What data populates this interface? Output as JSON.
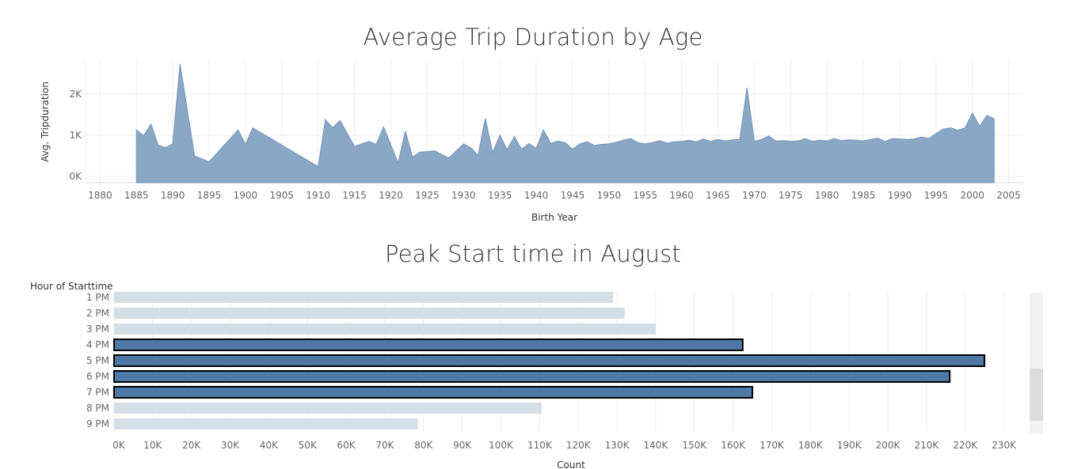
{
  "charts": {
    "area": {
      "title": "Average Trip Duration by Age"
    },
    "bar": {
      "title": "Peak Start time in August"
    }
  },
  "chart_data": [
    {
      "type": "area",
      "title": "Average Trip Duration by Age",
      "xlabel": "Birth Year",
      "ylabel": "Avg. Tripduration",
      "xlim": [
        1878,
        2007
      ],
      "ylim": [
        -150,
        2800
      ],
      "xticks": [
        "1880",
        "1885",
        "1890",
        "1895",
        "1900",
        "1905",
        "1910",
        "1915",
        "1920",
        "1925",
        "1930",
        "1935",
        "1940",
        "1945",
        "1950",
        "1955",
        "1960",
        "1965",
        "1970",
        "1975",
        "1980",
        "1985",
        "1990",
        "1995",
        "2000",
        "2005"
      ],
      "yticks": [
        "0K",
        "1K",
        "2K"
      ],
      "grid": true,
      "color": "#8aa7c6",
      "x": [
        1885,
        1886,
        1887,
        1888,
        1889,
        1890,
        1891,
        1893,
        1895,
        1899,
        1900,
        1901,
        1910,
        1911,
        1912,
        1913,
        1915,
        1917,
        1918,
        1919,
        1921,
        1922,
        1923,
        1924,
        1926,
        1928,
        1930,
        1931,
        1932,
        1933,
        1934,
        1935,
        1936,
        1937,
        1938,
        1939,
        1940,
        1941,
        1942,
        1943,
        1944,
        1945,
        1946,
        1947,
        1948,
        1949,
        1950,
        1951,
        1952,
        1953,
        1954,
        1955,
        1956,
        1957,
        1958,
        1959,
        1960,
        1961,
        1962,
        1963,
        1964,
        1965,
        1966,
        1967,
        1968,
        1969,
        1970,
        1971,
        1972,
        1973,
        1974,
        1975,
        1976,
        1977,
        1978,
        1979,
        1980,
        1981,
        1982,
        1983,
        1984,
        1985,
        1986,
        1987,
        1988,
        1989,
        1990,
        1991,
        1992,
        1993,
        1994,
        1995,
        1996,
        1997,
        1998,
        1999,
        2000,
        2001,
        2002,
        2003
      ],
      "y": [
        1130,
        990,
        1270,
        760,
        700,
        790,
        2730,
        500,
        360,
        1130,
        780,
        1180,
        240,
        1380,
        1180,
        1360,
        730,
        850,
        780,
        1200,
        330,
        1100,
        470,
        590,
        620,
        450,
        790,
        700,
        510,
        1410,
        580,
        1000,
        650,
        970,
        660,
        800,
        680,
        1130,
        800,
        860,
        820,
        660,
        790,
        840,
        750,
        780,
        790,
        830,
        880,
        920,
        820,
        790,
        820,
        870,
        810,
        840,
        850,
        880,
        840,
        910,
        850,
        900,
        860,
        890,
        900,
        2150,
        860,
        900,
        980,
        860,
        870,
        850,
        860,
        920,
        850,
        880,
        860,
        920,
        870,
        890,
        880,
        860,
        900,
        930,
        850,
        920,
        910,
        900,
        910,
        960,
        920,
        1040,
        1150,
        1180,
        1120,
        1180,
        1540,
        1220,
        1480,
        1400
      ]
    },
    {
      "type": "bar",
      "orientation": "horizontal",
      "title": "Peak Start time in August",
      "ylabel": "Hour of Starttime",
      "xlabel": "Count",
      "categories": [
        "1 PM",
        "2 PM",
        "3 PM",
        "4 PM",
        "5 PM",
        "6 PM",
        "7 PM",
        "8 PM",
        "9 PM"
      ],
      "values": [
        129000,
        132000,
        140000,
        162500,
        225000,
        216000,
        165000,
        110500,
        78500
      ],
      "highlighted": [
        false,
        false,
        false,
        true,
        true,
        true,
        true,
        false,
        false
      ],
      "xlim": [
        0,
        235000
      ],
      "xticks": [
        "0K",
        "10K",
        "20K",
        "30K",
        "40K",
        "50K",
        "60K",
        "70K",
        "80K",
        "90K",
        "100K",
        "110K",
        "120K",
        "130K",
        "140K",
        "150K",
        "160K",
        "170K",
        "180K",
        "190K",
        "200K",
        "210K",
        "220K",
        "230K"
      ],
      "grid": true,
      "colors": {
        "highlight": "#4e79a7",
        "muted": "#d5dde5",
        "outline": "#000000"
      }
    }
  ]
}
